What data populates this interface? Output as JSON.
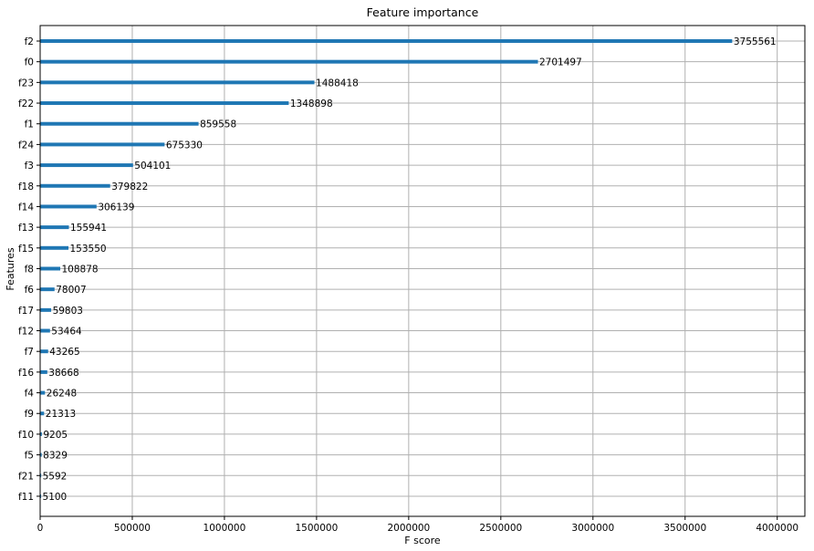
{
  "chart_data": {
    "type": "bar",
    "orientation": "horizontal",
    "title": "Feature importance",
    "xlabel": "F score",
    "ylabel": "Features",
    "xlim": [
      0,
      4150000
    ],
    "xticks": [
      {
        "value": 0,
        "label": "0"
      },
      {
        "value": 500000,
        "label": "500000"
      },
      {
        "value": 1000000,
        "label": "1000000"
      },
      {
        "value": 1500000,
        "label": "1500000"
      },
      {
        "value": 2000000,
        "label": "2000000"
      },
      {
        "value": 2500000,
        "label": "2500000"
      },
      {
        "value": 3000000,
        "label": "3000000"
      },
      {
        "value": 3500000,
        "label": "3500000"
      },
      {
        "value": 4000000,
        "label": "4000000"
      }
    ],
    "grid": true,
    "bar_color": "#1f77b4",
    "categories": [
      "f2",
      "f0",
      "f23",
      "f22",
      "f1",
      "f24",
      "f3",
      "f18",
      "f14",
      "f13",
      "f15",
      "f8",
      "f6",
      "f17",
      "f12",
      "f7",
      "f16",
      "f4",
      "f9",
      "f10",
      "f5",
      "f21",
      "f11"
    ],
    "values": [
      3755561,
      2701497,
      1488418,
      1348898,
      859558,
      675330,
      504101,
      379822,
      306139,
      155941,
      153550,
      108878,
      78007,
      59803,
      53464,
      43265,
      38668,
      26248,
      21313,
      9205,
      8329,
      5592,
      5100
    ],
    "value_labels": [
      "3755561",
      "2701497",
      "1488418",
      "1348898",
      "859558",
      "675330",
      "504101",
      "379822",
      "306139",
      "155941",
      "153550",
      "108878",
      "78007",
      "59803",
      "53464",
      "43265",
      "38668",
      "26248",
      "21313",
      "9205",
      "8329",
      "5592",
      "5100"
    ]
  }
}
